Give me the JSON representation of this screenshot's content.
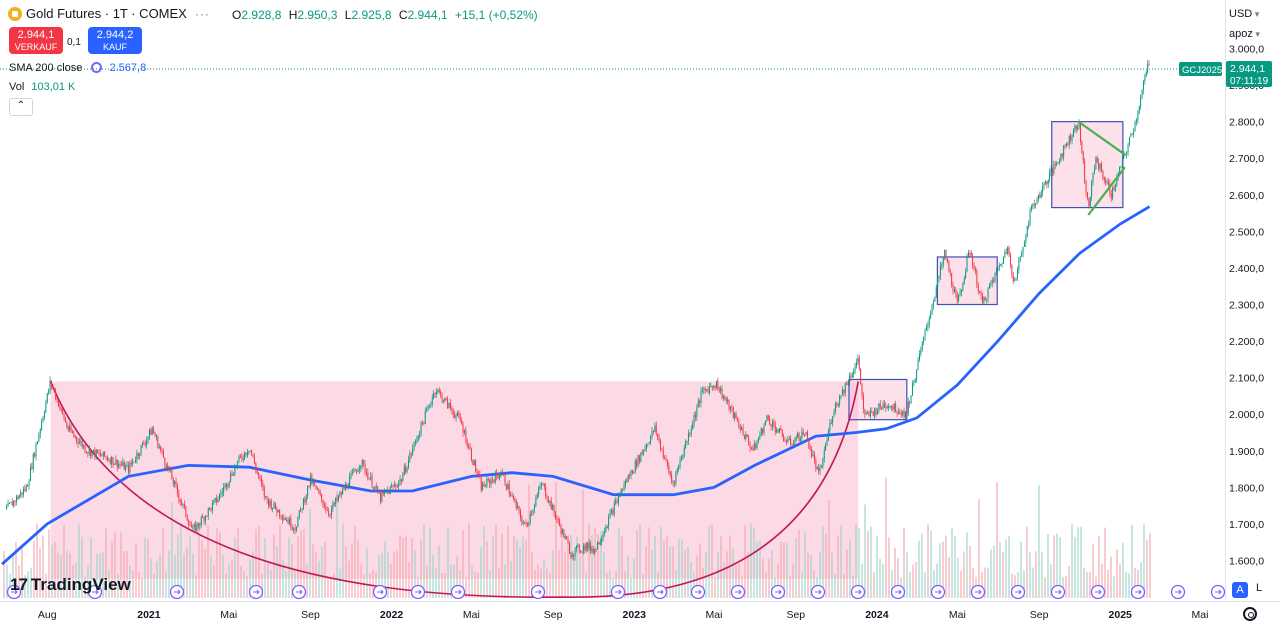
{
  "header": {
    "title": "Gold Futures · 1T · COMEX",
    "ohlc": [
      {
        "k": "O",
        "v": "2.928,8"
      },
      {
        "k": "H",
        "v": "2.950,3"
      },
      {
        "k": "L",
        "v": "2.925,8"
      },
      {
        "k": "C",
        "v": "2.944,1"
      }
    ],
    "change": "+15,1 (+0,52%)"
  },
  "trade": {
    "sell_price": "2.944,1",
    "sell_label": "VERKAUF",
    "buy_price": "2.944,2",
    "buy_label": "KAUF",
    "spread": "0,1"
  },
  "indicators": {
    "sma_label": "SMA 200 close",
    "sma_value": "2.567,8",
    "vol_label": "Vol",
    "vol_value": "103,01 K"
  },
  "right_panel": {
    "currency": "USD",
    "scale_mode": "apoz",
    "symbol_tag": "GCJ2025",
    "last_price": "2.944,1",
    "countdown": "07:11:19"
  },
  "branding": {
    "logo_text": "TradingView"
  },
  "controls": {
    "auto": "A",
    "log": "L"
  },
  "colors": {
    "up": "#089981",
    "down": "#f23645",
    "sma": "#2962ff",
    "cup": "#c2185b",
    "zone_fill": "#f8bbd0",
    "triangle": "#4caf50",
    "box_stroke": "#3f51b5"
  },
  "chart_data": {
    "type": "candlestick",
    "symbol": "Gold Futures",
    "y_ticks": [
      "3.000,0",
      "2.900,0",
      "2.800,0",
      "2.700,0",
      "2.600,0",
      "2.500,0",
      "2.400,0",
      "2.300,0",
      "2.200,0",
      "2.100,0",
      "2.000,0",
      "1.900,0",
      "1.800,0",
      "1.700,0",
      "1.600,0"
    ],
    "ylim": [
      1550,
      3030
    ],
    "x_ticks": [
      "Aug",
      "2021",
      "Mai",
      "Sep",
      "2022",
      "Mai",
      "Sep",
      "2023",
      "Mai",
      "Sep",
      "2024",
      "Mai",
      "Sep",
      "2025",
      "Mai"
    ],
    "x_tick_dates": [
      "2020-08",
      "2021-01",
      "2021-05",
      "2021-09",
      "2022-01",
      "2022-05",
      "2022-09",
      "2023-01",
      "2023-05",
      "2023-09",
      "2024-01",
      "2024-05",
      "2024-09",
      "2025-01",
      "2025-05"
    ],
    "price_path": [
      [
        "2020-06-01",
        1740
      ],
      [
        "2020-07-01",
        1800
      ],
      [
        "2020-08-06",
        2089
      ],
      [
        "2020-09-01",
        1960
      ],
      [
        "2020-10-01",
        1900
      ],
      [
        "2020-11-01",
        1880
      ],
      [
        "2020-12-01",
        1850
      ],
      [
        "2021-01-06",
        1959
      ],
      [
        "2021-03-08",
        1680
      ],
      [
        "2021-04-15",
        1770
      ],
      [
        "2021-05-15",
        1870
      ],
      [
        "2021-06-01",
        1910
      ],
      [
        "2021-06-25",
        1770
      ],
      [
        "2021-08-09",
        1690
      ],
      [
        "2021-09-01",
        1820
      ],
      [
        "2021-09-29",
        1730
      ],
      [
        "2021-11-16",
        1870
      ],
      [
        "2021-12-15",
        1770
      ],
      [
        "2022-01-15",
        1820
      ],
      [
        "2022-03-08",
        2070
      ],
      [
        "2022-04-15",
        1980
      ],
      [
        "2022-05-16",
        1800
      ],
      [
        "2022-06-15",
        1840
      ],
      [
        "2022-07-21",
        1690
      ],
      [
        "2022-08-15",
        1810
      ],
      [
        "2022-09-28",
        1620
      ],
      [
        "2022-10-20",
        1640
      ],
      [
        "2022-11-03",
        1630
      ],
      [
        "2022-12-15",
        1800
      ],
      [
        "2023-02-01",
        1960
      ],
      [
        "2023-02-28",
        1810
      ],
      [
        "2023-04-13",
        2060
      ],
      [
        "2023-05-04",
        2085
      ],
      [
        "2023-06-29",
        1900
      ],
      [
        "2023-07-20",
        1990
      ],
      [
        "2023-08-21",
        1920
      ],
      [
        "2023-09-15",
        1950
      ],
      [
        "2023-10-06",
        1830
      ],
      [
        "2023-10-27",
        2010
      ],
      [
        "2023-12-04",
        2150
      ],
      [
        "2023-12-13",
        1990
      ],
      [
        "2024-01-15",
        2030
      ],
      [
        "2024-02-14",
        2000
      ],
      [
        "2024-03-08",
        2180
      ],
      [
        "2024-04-12",
        2440
      ],
      [
        "2024-05-01",
        2300
      ],
      [
        "2024-05-20",
        2450
      ],
      [
        "2024-06-07",
        2300
      ],
      [
        "2024-07-17",
        2460
      ],
      [
        "2024-07-25",
        2350
      ],
      [
        "2024-08-20",
        2560
      ],
      [
        "2024-09-25",
        2680
      ],
      [
        "2024-10-30",
        2800
      ],
      [
        "2024-11-14",
        2560
      ],
      [
        "2024-11-25",
        2700
      ],
      [
        "2024-12-19",
        2600
      ],
      [
        "2025-01-10",
        2720
      ],
      [
        "2025-01-24",
        2800
      ],
      [
        "2025-02-11",
        2950
      ],
      [
        "2025-02-14",
        2944.1
      ]
    ],
    "sma200_path": [
      [
        "2020-05-25",
        1590
      ],
      [
        "2020-08-01",
        1700
      ],
      [
        "2020-12-01",
        1830
      ],
      [
        "2021-03-01",
        1860
      ],
      [
        "2021-06-01",
        1855
      ],
      [
        "2021-09-01",
        1820
      ],
      [
        "2021-12-01",
        1790
      ],
      [
        "2022-02-01",
        1790
      ],
      [
        "2022-05-01",
        1830
      ],
      [
        "2022-07-01",
        1840
      ],
      [
        "2022-09-01",
        1830
      ],
      [
        "2022-12-01",
        1780
      ],
      [
        "2023-03-01",
        1780
      ],
      [
        "2023-05-01",
        1800
      ],
      [
        "2023-07-01",
        1860
      ],
      [
        "2023-10-01",
        1940
      ],
      [
        "2023-12-01",
        1950
      ],
      [
        "2024-01-15",
        1960
      ],
      [
        "2024-03-01",
        1990
      ],
      [
        "2024-05-01",
        2080
      ],
      [
        "2024-07-01",
        2200
      ],
      [
        "2024-09-01",
        2330
      ],
      [
        "2024-11-01",
        2440
      ],
      [
        "2025-01-01",
        2520
      ],
      [
        "2025-02-14",
        2567.8
      ]
    ],
    "cup": {
      "left": [
        "2020-08-06",
        2090
      ],
      "bottom": [
        "2022-09-15",
        1500
      ],
      "right": [
        "2023-12-04",
        2090
      ]
    },
    "zones": [
      {
        "from": "2020-08-06",
        "to": "2023-12-04",
        "low": 1550,
        "high": 2090
      },
      {
        "from": "2023-11-20",
        "to": "2024-02-15",
        "low": 1985,
        "high": 2095
      },
      {
        "from": "2024-04-01",
        "to": "2024-06-30",
        "low": 2300,
        "high": 2430
      },
      {
        "from": "2024-09-20",
        "to": "2025-01-05",
        "low": 2565,
        "high": 2800
      }
    ],
    "triangle": {
      "upper": [
        [
          "2024-10-30",
          2800
        ],
        [
          "2025-01-08",
          2710
        ]
      ],
      "lower": [
        [
          "2024-11-14",
          2545
        ],
        [
          "2025-01-08",
          2675
        ]
      ]
    },
    "last_price": 2944.1
  }
}
